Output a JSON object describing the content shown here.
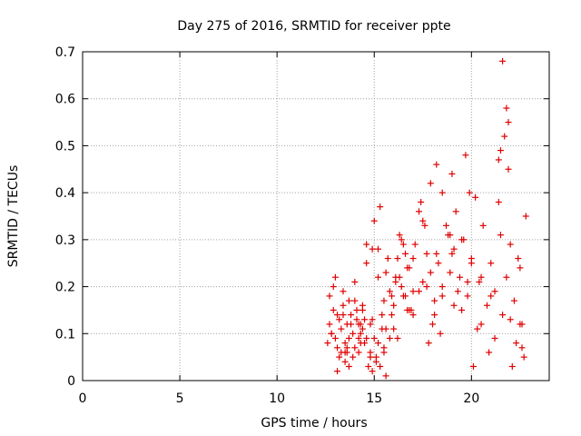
{
  "chart_data": {
    "type": "scatter",
    "title": "Day 275 of 2016, SRMTID for receiver ppte",
    "xlabel": "GPS time / hours",
    "ylabel": "SRMTID / TECUs",
    "xlim": [
      0,
      24
    ],
    "ylim": [
      0,
      0.7
    ],
    "xticks": [
      0,
      5,
      10,
      15,
      20
    ],
    "yticks": [
      0,
      0.1,
      0.2,
      0.3,
      0.4,
      0.5,
      0.6,
      0.7
    ],
    "xtick_labels": [
      "0",
      "5",
      "10",
      "15",
      "20"
    ],
    "ytick_labels": [
      "0",
      "0.1",
      "0.2",
      "0.3",
      "0.4",
      "0.5",
      "0.6",
      "0.7"
    ],
    "grid": true,
    "marker": "+",
    "series": [
      {
        "name": "SRMTID",
        "color": "#e00000",
        "x": [
          12.6,
          12.7,
          12.8,
          12.9,
          13.0,
          13.1,
          13.2,
          13.3,
          13.4,
          13.5,
          13.6,
          13.7,
          13.8,
          13.9,
          14.0,
          14.1,
          14.2,
          14.3,
          14.4,
          14.5,
          12.7,
          12.9,
          13.1,
          13.3,
          13.5,
          13.7,
          13.9,
          14.1,
          14.3,
          14.5,
          14.7,
          14.8,
          14.9,
          15.0,
          15.1,
          15.2,
          15.3,
          15.4,
          15.5,
          15.6,
          13.0,
          13.2,
          13.4,
          13.6,
          13.8,
          14.0,
          14.2,
          14.4,
          14.6,
          14.8,
          15.0,
          15.2,
          15.4,
          15.6,
          15.8,
          16.0,
          16.2,
          16.4,
          16.6,
          16.8,
          13.1,
          13.4,
          13.7,
          14.0,
          14.3,
          14.6,
          14.9,
          15.2,
          15.5,
          15.8,
          16.1,
          16.4,
          16.7,
          17.0,
          17.3,
          17.6,
          17.9,
          18.2,
          18.5,
          18.8,
          15.7,
          15.9,
          16.1,
          16.3,
          16.5,
          16.7,
          16.9,
          17.1,
          17.3,
          17.5,
          17.7,
          17.9,
          18.1,
          18.3,
          18.5,
          18.7,
          18.9,
          19.1,
          19.3,
          19.5,
          19.0,
          19.2,
          19.4,
          19.6,
          19.8,
          20.0,
          20.2,
          20.4,
          20.6,
          20.8,
          21.0,
          21.2,
          21.4,
          21.6,
          21.8,
          22.0,
          22.2,
          22.4,
          22.6,
          22.8,
          16.0,
          16.5,
          17.0,
          17.5,
          18.0,
          18.5,
          19.0,
          19.5,
          20.0,
          20.5,
          21.0,
          21.5,
          22.0,
          22.5,
          16.2,
          16.8,
          17.4,
          18.2,
          18.9,
          19.7,
          20.3,
          20.9,
          21.4,
          21.7,
          21.8,
          21.9,
          22.1,
          22.3,
          22.5,
          22.7,
          14.6,
          14.8,
          15.3,
          15.5,
          17.8,
          18.1,
          19.9,
          20.1,
          21.5,
          21.6,
          13.5,
          14.2,
          14.9,
          15.6,
          16.3,
          17.0,
          17.7,
          18.4,
          19.1,
          19.8,
          20.5,
          21.2,
          21.9,
          22.6,
          12.8,
          13.6,
          14.4,
          15.1,
          15.9,
          16.6
        ],
        "y": [
          0.08,
          0.12,
          0.1,
          0.15,
          0.09,
          0.07,
          0.13,
          0.11,
          0.16,
          0.08,
          0.12,
          0.09,
          0.14,
          0.1,
          0.07,
          0.13,
          0.09,
          0.12,
          0.11,
          0.08,
          0.18,
          0.2,
          0.14,
          0.06,
          0.04,
          0.17,
          0.05,
          0.15,
          0.1,
          0.13,
          0.03,
          0.06,
          0.02,
          0.09,
          0.05,
          0.08,
          0.03,
          0.11,
          0.06,
          0.01,
          0.22,
          0.05,
          0.19,
          0.07,
          0.12,
          0.21,
          0.06,
          0.16,
          0.25,
          0.12,
          0.34,
          0.28,
          0.14,
          0.23,
          0.19,
          0.16,
          0.26,
          0.2,
          0.18,
          0.24,
          0.02,
          0.14,
          0.03,
          0.17,
          0.08,
          0.29,
          0.13,
          0.22,
          0.17,
          0.09,
          0.21,
          0.3,
          0.15,
          0.26,
          0.19,
          0.33,
          0.23,
          0.27,
          0.18,
          0.31,
          0.26,
          0.14,
          0.22,
          0.31,
          0.18,
          0.24,
          0.15,
          0.29,
          0.36,
          0.21,
          0.27,
          0.42,
          0.17,
          0.25,
          0.2,
          0.33,
          0.23,
          0.28,
          0.19,
          0.3,
          0.44,
          0.36,
          0.22,
          0.3,
          0.18,
          0.26,
          0.39,
          0.21,
          0.33,
          0.16,
          0.25,
          0.19,
          0.47,
          0.14,
          0.22,
          0.29,
          0.17,
          0.26,
          0.12,
          0.35,
          0.11,
          0.29,
          0.19,
          0.34,
          0.12,
          0.4,
          0.27,
          0.15,
          0.25,
          0.22,
          0.18,
          0.31,
          0.13,
          0.24,
          0.09,
          0.15,
          0.38,
          0.46,
          0.31,
          0.48,
          0.11,
          0.06,
          0.38,
          0.52,
          0.58,
          0.55,
          0.03,
          0.08,
          0.12,
          0.05,
          0.09,
          0.05,
          0.37,
          0.07,
          0.08,
          0.14,
          0.4,
          0.03,
          0.49,
          0.68,
          0.06,
          0.12,
          0.28,
          0.11,
          0.22,
          0.14,
          0.2,
          0.1,
          0.16,
          0.21,
          0.12,
          0.09,
          0.45,
          0.07,
          0.1,
          0.06,
          0.15,
          0.04,
          0.18,
          0.27
        ]
      }
    ]
  }
}
